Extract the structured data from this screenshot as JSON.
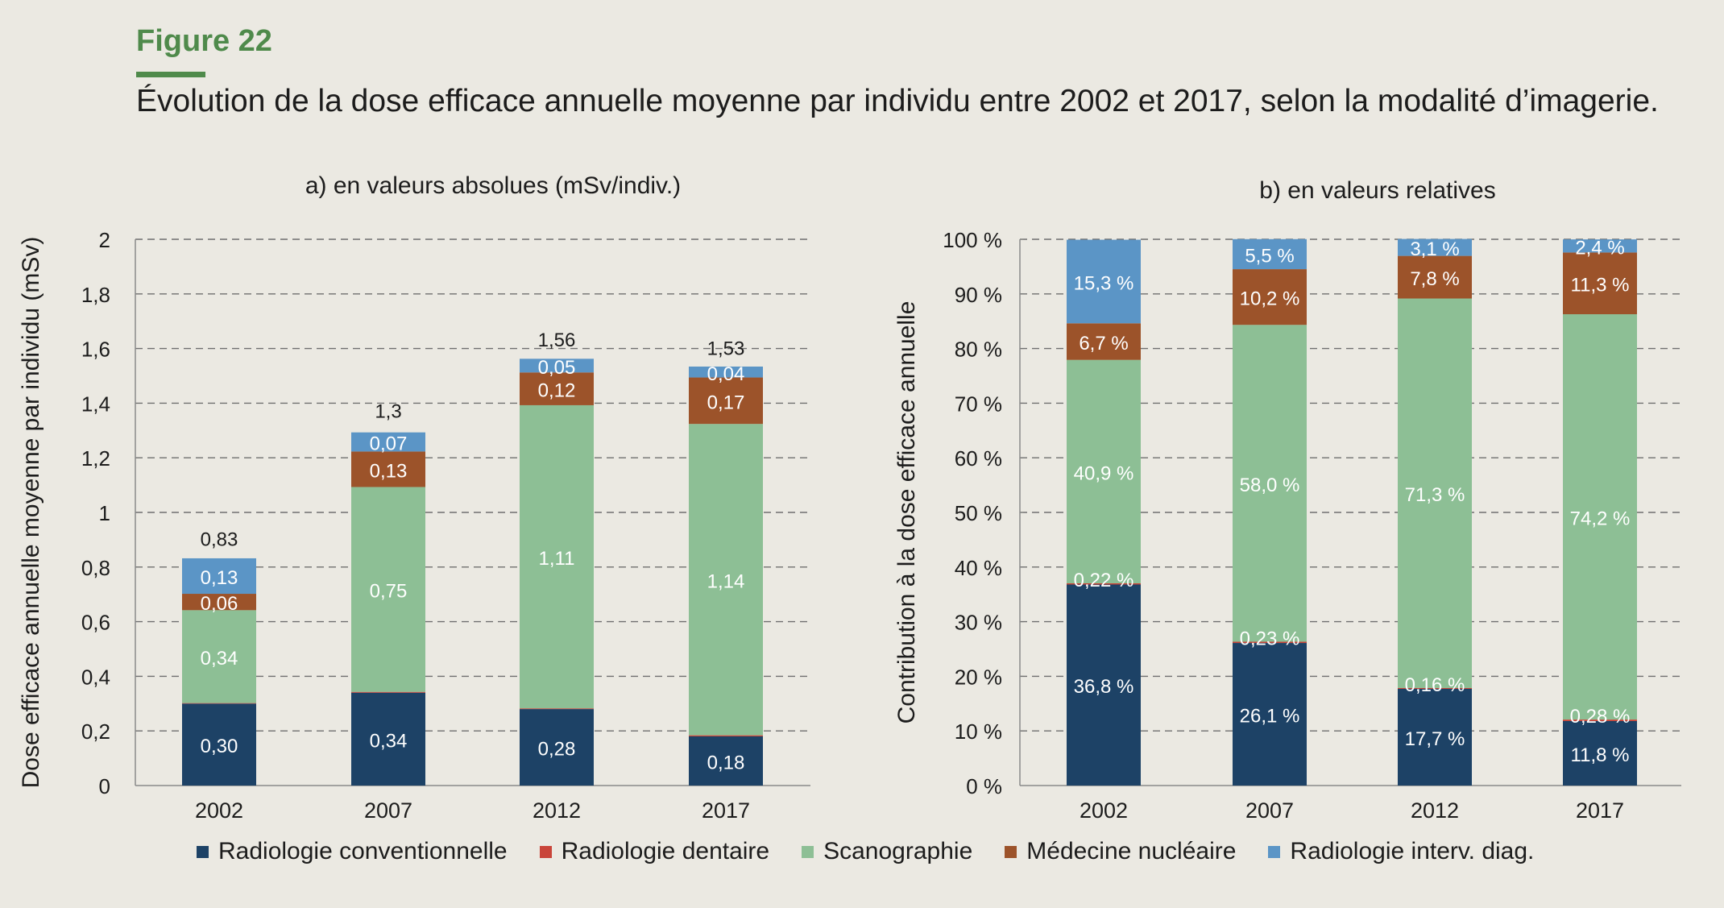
{
  "figure": {
    "label": "Figure 22",
    "title": "Évolution de la dose efficace annuelle moyenne par individu entre 2002 et 2017, selon la modalité d’imagerie."
  },
  "legend": [
    {
      "name": "Radiologie conventionnelle",
      "color": "#1d4266"
    },
    {
      "name": "Radiologie dentaire",
      "color": "#c9453a"
    },
    {
      "name": "Scanographie",
      "color": "#8dbf95"
    },
    {
      "name": "Médecine nucléaire",
      "color": "#9c532a"
    },
    {
      "name": "Radiologie interv. diag.",
      "color": "#5b95c6"
    }
  ],
  "chart_data": [
    {
      "type": "bar",
      "stacked": true,
      "title": "a) en valeurs absolues (mSv/indiv.)",
      "ylabel": "Dose efficace annuelle moyenne par individu (mSv)",
      "ylim": [
        0,
        2
      ],
      "yticks": [
        "0",
        "0,2",
        "0,4",
        "0,6",
        "0,8",
        "1",
        "1,2",
        "1,4",
        "1,6",
        "1,8",
        "2"
      ],
      "grid": true,
      "categories": [
        "2002",
        "2007",
        "2012",
        "2017"
      ],
      "totals": [
        0.83,
        1.3,
        1.56,
        1.53
      ],
      "total_labels": [
        "0,83",
        "1,3",
        "1,56",
        "1,53"
      ],
      "series": [
        {
          "name": "Radiologie conventionnelle",
          "values": [
            0.3,
            0.34,
            0.28,
            0.18
          ],
          "labels": [
            "0,30",
            "0,34",
            "0,28",
            "0,18"
          ]
        },
        {
          "name": "Radiologie dentaire",
          "values": [
            0.002,
            0.003,
            0.0025,
            0.004
          ],
          "labels": [
            "",
            "",
            "",
            ""
          ]
        },
        {
          "name": "Scanographie",
          "values": [
            0.34,
            0.75,
            1.11,
            1.14
          ],
          "labels": [
            "0,34",
            "0,75",
            "1,11",
            "1,14"
          ]
        },
        {
          "name": "Médecine nucléaire",
          "values": [
            0.06,
            0.13,
            0.12,
            0.17
          ],
          "labels": [
            "0,06",
            "0,13",
            "0,12",
            "0,17"
          ]
        },
        {
          "name": "Radiologie interv. diag.",
          "values": [
            0.13,
            0.07,
            0.05,
            0.04
          ],
          "labels": [
            "0,13",
            "0,07",
            "0,05",
            "0,04"
          ]
        }
      ]
    },
    {
      "type": "bar",
      "stacked": true,
      "title": "b) en valeurs relatives",
      "ylabel": "Contribution à la dose efficace annuelle",
      "ylim": [
        0,
        100
      ],
      "yticks": [
        "0 %",
        "10 %",
        "20 %",
        "30 %",
        "40 %",
        "50 %",
        "60 %",
        "70 %",
        "80 %",
        "90 %",
        "100 %"
      ],
      "grid": true,
      "categories": [
        "2002",
        "2007",
        "2012",
        "2017"
      ],
      "series": [
        {
          "name": "Radiologie conventionnelle",
          "values": [
            36.8,
            26.1,
            17.7,
            11.8
          ],
          "labels": [
            "36,8 %",
            "26,1 %",
            "17,7 %",
            "11,8 %"
          ]
        },
        {
          "name": "Radiologie dentaire",
          "values": [
            0.22,
            0.23,
            0.16,
            0.28
          ],
          "labels": [
            "0,22 %",
            "0,23 %",
            "0,16 %",
            "0,28 %"
          ]
        },
        {
          "name": "Scanographie",
          "values": [
            40.9,
            58.0,
            71.3,
            74.2
          ],
          "labels": [
            "40,9 %",
            "58,0 %",
            "71,3 %",
            "74,2 %"
          ]
        },
        {
          "name": "Médecine nucléaire",
          "values": [
            6.7,
            10.2,
            7.8,
            11.3
          ],
          "labels": [
            "6,7 %",
            "10,2 %",
            "7,8 %",
            "11,3 %"
          ]
        },
        {
          "name": "Radiologie interv. diag.",
          "values": [
            15.3,
            5.5,
            3.1,
            2.4
          ],
          "labels": [
            "15,3 %",
            "5,5 %",
            "3,1 %",
            "2,4 %"
          ]
        }
      ]
    }
  ]
}
